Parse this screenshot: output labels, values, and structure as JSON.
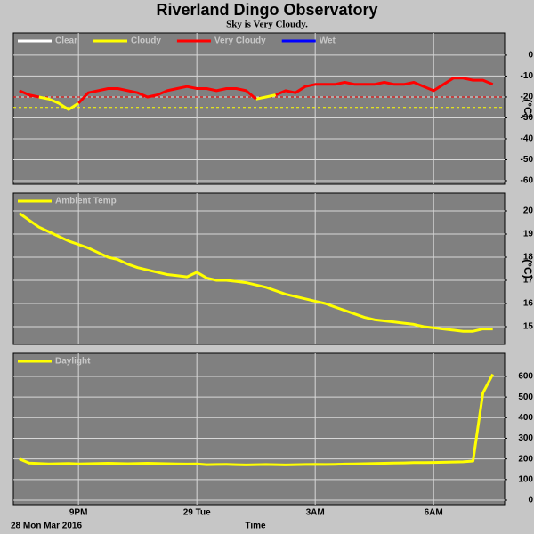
{
  "title": "Riverland Dingo Observatory",
  "subtitle": "Sky is Very Cloudy.",
  "x_axis": {
    "label": "Time",
    "date": "28 Mon Mar 2016",
    "x": [
      19.5,
      19.75,
      20,
      20.25,
      20.5,
      20.75,
      21,
      21.25,
      21.5,
      21.75,
      22,
      22.25,
      22.5,
      22.75,
      23,
      23.25,
      23.5,
      23.75,
      24,
      24.25,
      24.5,
      24.75,
      25,
      25.25,
      25.5,
      25.75,
      26,
      26.25,
      26.5,
      26.75,
      27,
      27.25,
      27.5,
      27.75,
      28,
      28.25,
      28.5,
      28.75,
      29,
      29.25,
      29.5,
      29.75,
      30,
      30.25,
      30.5,
      30.75,
      31,
      31.25,
      31.5
    ],
    "xlim": [
      19.35,
      31.8
    ],
    "xticks": [
      {
        "value": 21,
        "label": "9PM"
      },
      {
        "value": 24,
        "label": "29 Tue"
      },
      {
        "value": 27,
        "label": "3AM"
      },
      {
        "value": 30,
        "label": "6AM"
      }
    ]
  },
  "chart_data": [
    {
      "type": "line",
      "ylabel": "(°C)",
      "ylim": [
        -61.7,
        10.6
      ],
      "yticks": [
        0,
        -10,
        -20,
        -30,
        -40,
        -50,
        -60
      ],
      "grid": true,
      "reference_lines": [
        {
          "value": -20,
          "color": "#ff0000"
        },
        {
          "value": -25,
          "color": "#ffff00"
        }
      ],
      "series": [
        {
          "name": "Clear",
          "color": "#ffffff",
          "values": [
            null,
            null,
            null,
            null,
            null,
            null,
            null,
            null,
            null,
            null,
            null,
            null,
            null,
            null,
            null,
            null,
            null,
            null,
            null,
            null,
            null,
            null,
            null,
            null,
            null,
            null,
            null,
            null,
            null,
            null,
            null,
            null,
            null,
            null,
            null,
            null,
            null,
            null,
            null,
            null,
            null,
            null,
            null,
            null,
            null,
            null,
            null,
            null,
            null
          ]
        },
        {
          "name": "Cloudy",
          "color": "#ffff00",
          "values": [
            null,
            null,
            -20,
            -21,
            -23,
            -26,
            -23,
            null,
            null,
            null,
            null,
            null,
            null,
            null,
            null,
            null,
            null,
            null,
            null,
            null,
            null,
            null,
            null,
            null,
            -21,
            -20,
            -19,
            null,
            null,
            null,
            null,
            null,
            null,
            null,
            null,
            null,
            null,
            null,
            null,
            null,
            null,
            null,
            null,
            null,
            null,
            null,
            null,
            null,
            null
          ]
        },
        {
          "name": "Very Cloudy",
          "color": "#ff0000",
          "values": [
            -17,
            -19,
            -20,
            null,
            null,
            null,
            -23,
            -18,
            -17,
            -16,
            -16,
            -17,
            -18,
            -20,
            -19,
            -17,
            -16,
            -15,
            -16,
            -16,
            -17,
            -16,
            -16,
            -17,
            -21,
            null,
            -19,
            -17,
            -18,
            -15,
            -14,
            -14,
            -14,
            -13,
            -14,
            -14,
            -14,
            -13,
            -14,
            -14,
            -13,
            -15,
            -17,
            -14,
            -11,
            -11,
            -12,
            -12,
            -14
          ]
        },
        {
          "name": "Wet",
          "color": "#0000ff",
          "values": [
            null,
            null,
            null,
            null,
            null,
            null,
            null,
            null,
            null,
            null,
            null,
            null,
            null,
            null,
            null,
            null,
            null,
            null,
            null,
            null,
            null,
            null,
            null,
            null,
            null,
            null,
            null,
            null,
            null,
            null,
            null,
            null,
            null,
            null,
            null,
            null,
            null,
            null,
            null,
            null,
            null,
            null,
            null,
            null,
            null,
            null,
            null,
            null,
            null
          ]
        }
      ]
    },
    {
      "type": "line",
      "ylabel": "(°C)",
      "ylim": [
        14.23,
        20.77
      ],
      "yticks": [
        20,
        19,
        18,
        17,
        16,
        15
      ],
      "grid": true,
      "series": [
        {
          "name": "Ambient Temp",
          "color": "#ffff00",
          "values": [
            19.9,
            19.6,
            19.3,
            19.1,
            18.9,
            18.7,
            18.55,
            18.4,
            18.2,
            18.0,
            17.9,
            17.7,
            17.55,
            17.45,
            17.35,
            17.25,
            17.2,
            17.15,
            17.35,
            17.1,
            17.0,
            17.0,
            16.95,
            16.9,
            16.8,
            16.7,
            16.55,
            16.4,
            16.3,
            16.2,
            16.1,
            16.0,
            15.85,
            15.7,
            15.55,
            15.4,
            15.3,
            15.25,
            15.2,
            15.15,
            15.1,
            15.0,
            14.95,
            14.9,
            14.85,
            14.8,
            14.8,
            14.9,
            14.9
          ]
        }
      ]
    },
    {
      "type": "line",
      "ylim": [
        -21.6,
        712
      ],
      "yticks": [
        600,
        500,
        400,
        300,
        200,
        100,
        0
      ],
      "grid": true,
      "series": [
        {
          "name": "Daylight",
          "color": "#ffff00",
          "values": [
            200,
            180,
            178,
            176,
            177,
            178,
            176,
            177,
            178,
            179,
            178,
            177,
            178,
            179,
            178,
            177,
            176,
            175,
            176,
            172,
            173,
            174,
            172,
            171,
            172,
            173,
            172,
            171,
            172,
            173,
            174,
            173,
            174,
            175,
            176,
            177,
            178,
            179,
            180,
            181,
            182,
            182,
            183,
            184,
            185,
            186,
            190,
            520,
            610
          ]
        }
      ]
    }
  ]
}
